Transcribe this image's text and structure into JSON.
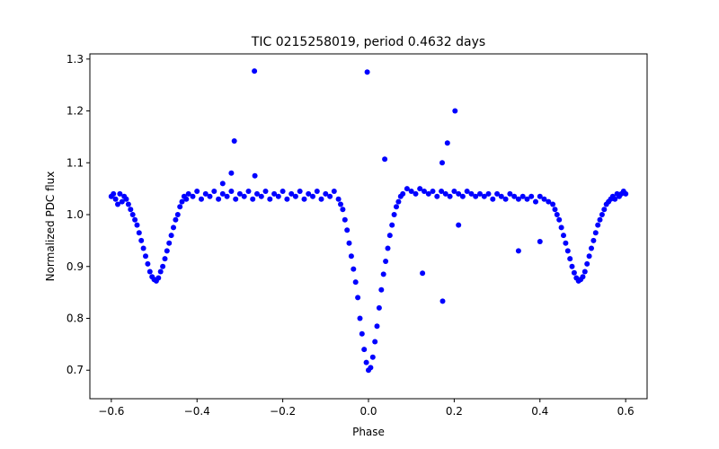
{
  "chart_data": {
    "type": "scatter",
    "title": "TIC 0215258019, period 0.4632 days",
    "xlabel": "Phase",
    "ylabel": "Normalized PDC flux",
    "xlim": [
      -0.65,
      0.65
    ],
    "ylim": [
      0.645,
      1.31
    ],
    "grid": false,
    "legend": "none",
    "marker_color": "#0000ff",
    "x_ticks": [
      {
        "value": -0.6,
        "label": "−0.6"
      },
      {
        "value": -0.4,
        "label": "−0.4"
      },
      {
        "value": -0.2,
        "label": "−0.2"
      },
      {
        "value": 0.0,
        "label": "0.0"
      },
      {
        "value": 0.2,
        "label": "0.2"
      },
      {
        "value": 0.4,
        "label": "0.4"
      },
      {
        "value": 0.6,
        "label": "0.6"
      }
    ],
    "y_ticks": [
      {
        "value": 0.7,
        "label": "0.7"
      },
      {
        "value": 0.8,
        "label": "0.8"
      },
      {
        "value": 0.9,
        "label": "0.9"
      },
      {
        "value": 1.0,
        "label": "1.0"
      },
      {
        "value": 1.1,
        "label": "1.1"
      },
      {
        "value": 1.2,
        "label": "1.2"
      },
      {
        "value": 1.3,
        "label": "1.3"
      }
    ],
    "series": [
      {
        "points": [
          [
            -0.6,
            1.035
          ],
          [
            -0.595,
            1.04
          ],
          [
            -0.59,
            1.03
          ],
          [
            -0.585,
            1.02
          ],
          [
            -0.58,
            1.04
          ],
          [
            -0.575,
            1.025
          ],
          [
            -0.57,
            1.035
          ],
          [
            -0.565,
            1.03
          ],
          [
            -0.56,
            1.02
          ],
          [
            -0.555,
            1.01
          ],
          [
            -0.55,
            1.0
          ],
          [
            -0.545,
            0.99
          ],
          [
            -0.54,
            0.98
          ],
          [
            -0.535,
            0.965
          ],
          [
            -0.53,
            0.95
          ],
          [
            -0.525,
            0.935
          ],
          [
            -0.52,
            0.92
          ],
          [
            -0.515,
            0.905
          ],
          [
            -0.51,
            0.89
          ],
          [
            -0.505,
            0.88
          ],
          [
            -0.5,
            0.875
          ],
          [
            -0.495,
            0.872
          ],
          [
            -0.49,
            0.878
          ],
          [
            -0.485,
            0.89
          ],
          [
            -0.48,
            0.9
          ],
          [
            -0.475,
            0.915
          ],
          [
            -0.47,
            0.93
          ],
          [
            -0.465,
            0.945
          ],
          [
            -0.46,
            0.96
          ],
          [
            -0.455,
            0.975
          ],
          [
            -0.45,
            0.99
          ],
          [
            -0.445,
            1.0
          ],
          [
            -0.44,
            1.015
          ],
          [
            -0.435,
            1.025
          ],
          [
            -0.43,
            1.035
          ],
          [
            -0.425,
            1.03
          ],
          [
            -0.42,
            1.04
          ],
          [
            -0.41,
            1.035
          ],
          [
            -0.4,
            1.045
          ],
          [
            -0.39,
            1.03
          ],
          [
            -0.38,
            1.04
          ],
          [
            -0.37,
            1.035
          ],
          [
            -0.36,
            1.045
          ],
          [
            -0.35,
            1.03
          ],
          [
            -0.34,
            1.04
          ],
          [
            -0.33,
            1.035
          ],
          [
            -0.32,
            1.045
          ],
          [
            -0.31,
            1.03
          ],
          [
            -0.3,
            1.04
          ],
          [
            -0.29,
            1.035
          ],
          [
            -0.28,
            1.045
          ],
          [
            -0.27,
            1.03
          ],
          [
            -0.26,
            1.04
          ],
          [
            -0.25,
            1.035
          ],
          [
            -0.24,
            1.045
          ],
          [
            -0.23,
            1.03
          ],
          [
            -0.22,
            1.04
          ],
          [
            -0.21,
            1.035
          ],
          [
            -0.2,
            1.045
          ],
          [
            -0.19,
            1.03
          ],
          [
            -0.18,
            1.04
          ],
          [
            -0.17,
            1.035
          ],
          [
            -0.16,
            1.045
          ],
          [
            -0.15,
            1.03
          ],
          [
            -0.14,
            1.04
          ],
          [
            -0.13,
            1.035
          ],
          [
            -0.12,
            1.045
          ],
          [
            -0.11,
            1.03
          ],
          [
            -0.1,
            1.04
          ],
          [
            -0.09,
            1.035
          ],
          [
            -0.08,
            1.045
          ],
          [
            -0.07,
            1.03
          ],
          [
            -0.065,
            1.02
          ],
          [
            -0.06,
            1.01
          ],
          [
            -0.055,
            0.99
          ],
          [
            -0.05,
            0.97
          ],
          [
            -0.045,
            0.945
          ],
          [
            -0.04,
            0.92
          ],
          [
            -0.035,
            0.895
          ],
          [
            -0.03,
            0.87
          ],
          [
            -0.025,
            0.84
          ],
          [
            -0.02,
            0.8
          ],
          [
            -0.015,
            0.77
          ],
          [
            -0.01,
            0.74
          ],
          [
            -0.005,
            0.715
          ],
          [
            0.0,
            0.7
          ],
          [
            0.005,
            0.705
          ],
          [
            0.01,
            0.725
          ],
          [
            0.015,
            0.755
          ],
          [
            0.02,
            0.785
          ],
          [
            0.025,
            0.82
          ],
          [
            0.03,
            0.855
          ],
          [
            0.035,
            0.885
          ],
          [
            0.04,
            0.91
          ],
          [
            0.045,
            0.935
          ],
          [
            0.05,
            0.96
          ],
          [
            0.055,
            0.98
          ],
          [
            0.06,
            1.0
          ],
          [
            0.065,
            1.015
          ],
          [
            0.07,
            1.025
          ],
          [
            0.075,
            1.035
          ],
          [
            0.08,
            1.04
          ],
          [
            0.09,
            1.05
          ],
          [
            0.1,
            1.045
          ],
          [
            0.11,
            1.04
          ],
          [
            0.12,
            1.05
          ],
          [
            0.13,
            1.045
          ],
          [
            0.14,
            1.04
          ],
          [
            0.15,
            1.045
          ],
          [
            0.16,
            1.035
          ],
          [
            0.17,
            1.045
          ],
          [
            0.18,
            1.04
          ],
          [
            0.19,
            1.035
          ],
          [
            0.2,
            1.045
          ],
          [
            0.21,
            1.04
          ],
          [
            0.22,
            1.035
          ],
          [
            0.23,
            1.045
          ],
          [
            0.24,
            1.04
          ],
          [
            0.25,
            1.035
          ],
          [
            0.26,
            1.04
          ],
          [
            0.27,
            1.035
          ],
          [
            0.28,
            1.04
          ],
          [
            0.29,
            1.03
          ],
          [
            0.3,
            1.04
          ],
          [
            0.31,
            1.035
          ],
          [
            0.32,
            1.03
          ],
          [
            0.33,
            1.04
          ],
          [
            0.34,
            1.035
          ],
          [
            0.35,
            1.03
          ],
          [
            0.36,
            1.035
          ],
          [
            0.37,
            1.03
          ],
          [
            0.38,
            1.035
          ],
          [
            0.39,
            1.025
          ],
          [
            0.4,
            1.035
          ],
          [
            0.41,
            1.03
          ],
          [
            0.42,
            1.025
          ],
          [
            0.43,
            1.02
          ],
          [
            0.435,
            1.01
          ],
          [
            0.44,
            1.0
          ],
          [
            0.445,
            0.99
          ],
          [
            0.45,
            0.975
          ],
          [
            0.455,
            0.96
          ],
          [
            0.46,
            0.945
          ],
          [
            0.465,
            0.93
          ],
          [
            0.47,
            0.915
          ],
          [
            0.475,
            0.9
          ],
          [
            0.48,
            0.888
          ],
          [
            0.485,
            0.878
          ],
          [
            0.49,
            0.872
          ],
          [
            0.495,
            0.875
          ],
          [
            0.5,
            0.88
          ],
          [
            0.505,
            0.89
          ],
          [
            0.51,
            0.905
          ],
          [
            0.515,
            0.92
          ],
          [
            0.52,
            0.935
          ],
          [
            0.525,
            0.95
          ],
          [
            0.53,
            0.965
          ],
          [
            0.535,
            0.98
          ],
          [
            0.54,
            0.99
          ],
          [
            0.545,
            1.0
          ],
          [
            0.55,
            1.01
          ],
          [
            0.555,
            1.02
          ],
          [
            0.56,
            1.025
          ],
          [
            0.565,
            1.03
          ],
          [
            0.57,
            1.035
          ],
          [
            0.575,
            1.03
          ],
          [
            0.58,
            1.04
          ],
          [
            0.585,
            1.035
          ],
          [
            0.59,
            1.04
          ],
          [
            0.595,
            1.045
          ],
          [
            0.6,
            1.04
          ],
          [
            -0.266,
            1.277
          ],
          [
            -0.003,
            1.275
          ],
          [
            0.202,
            1.2
          ],
          [
            -0.313,
            1.142
          ],
          [
            0.184,
            1.138
          ],
          [
            0.172,
            1.1
          ],
          [
            0.038,
            1.107
          ],
          [
            0.126,
            0.887
          ],
          [
            0.173,
            0.833
          ],
          [
            0.35,
            0.93
          ],
          [
            0.4,
            0.948
          ],
          [
            -0.34,
            1.06
          ],
          [
            -0.32,
            1.08
          ],
          [
            -0.265,
            1.075
          ],
          [
            0.21,
            0.98
          ]
        ]
      }
    ]
  }
}
